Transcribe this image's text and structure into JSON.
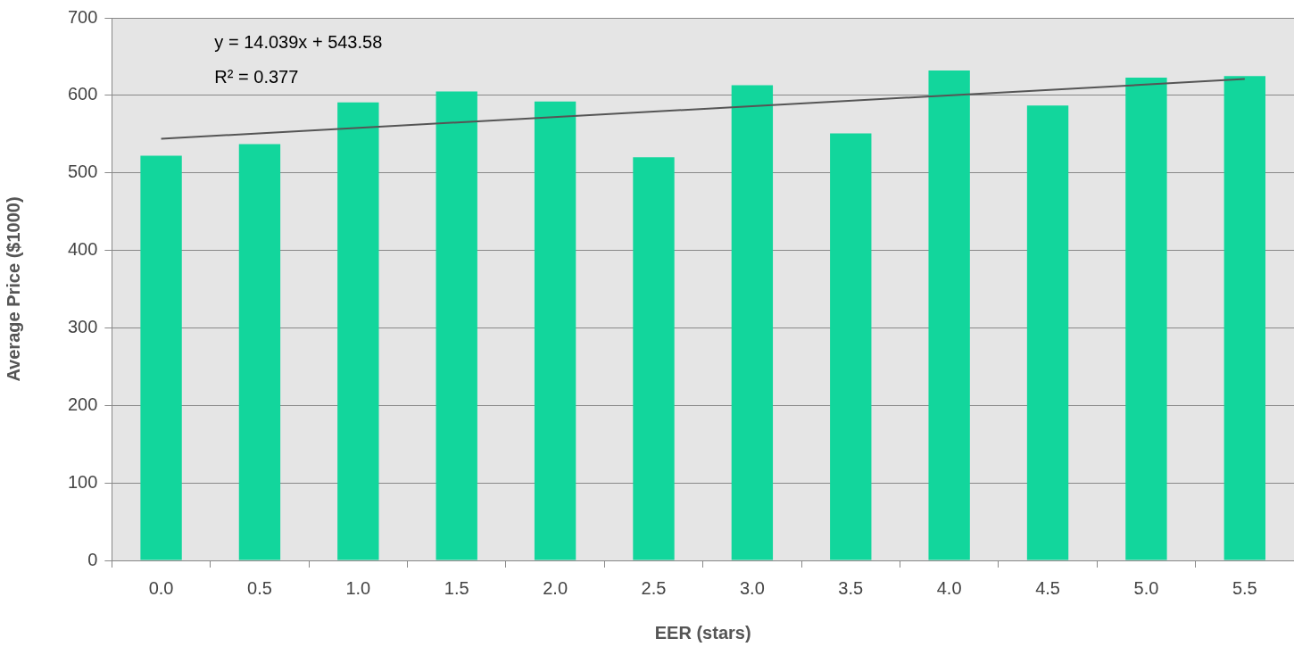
{
  "chart_data": {
    "type": "bar",
    "xlabel": "EER (stars)",
    "ylabel": "Average Price ($1000)",
    "categories": [
      "0.0",
      "0.5",
      "1.0",
      "1.5",
      "2.0",
      "2.5",
      "3.0",
      "3.5",
      "4.0",
      "4.5",
      "5.0",
      "5.5"
    ],
    "series": [
      {
        "color": "#12d69c",
        "values": [
          522,
          537,
          591,
          605,
          592,
          520,
          613,
          551,
          632,
          587,
          623,
          625
        ]
      },
      {
        "type": "line",
        "color": "#555555",
        "x": [
          "0.0",
          "5.5"
        ],
        "values": [
          544,
          621
        ]
      }
    ],
    "ylim": [
      0,
      700
    ],
    "yticks": [
      0,
      100,
      200,
      300,
      400,
      500,
      600,
      700
    ],
    "grid": "y",
    "legend": false,
    "annotations": [
      "y = 14.039x + 543.58",
      "R² = 0.377"
    ]
  }
}
